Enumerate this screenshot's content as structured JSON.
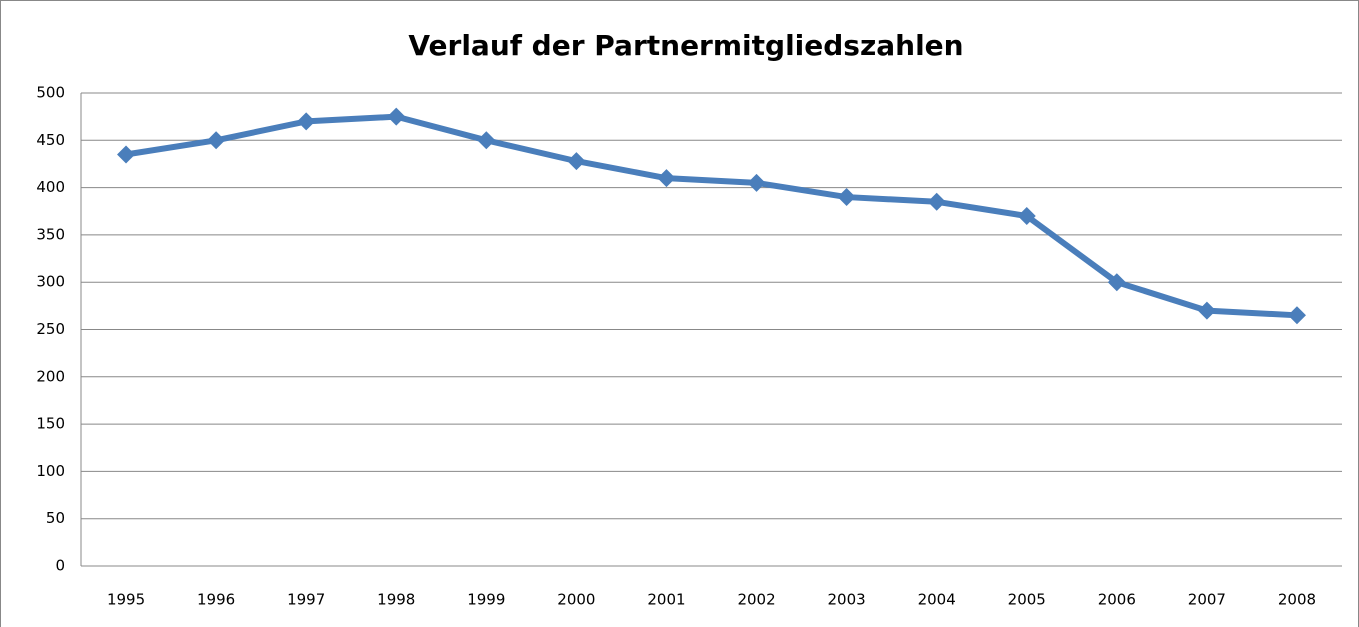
{
  "chart_data": {
    "type": "line",
    "title": "Verlauf der Partnermitgliedszahlen",
    "categories": [
      "1995",
      "1996",
      "1997",
      "1998",
      "1999",
      "2000",
      "2001",
      "2002",
      "2003",
      "2004",
      "2005",
      "2006",
      "2007",
      "2008"
    ],
    "values": [
      435,
      450,
      470,
      475,
      450,
      428,
      410,
      405,
      390,
      385,
      370,
      300,
      270,
      265
    ],
    "color": "#4a7ebb",
    "ylim": [
      0,
      500
    ],
    "yticks": [
      0,
      50,
      100,
      150,
      200,
      250,
      300,
      350,
      400,
      450,
      500
    ],
    "grid": true
  }
}
